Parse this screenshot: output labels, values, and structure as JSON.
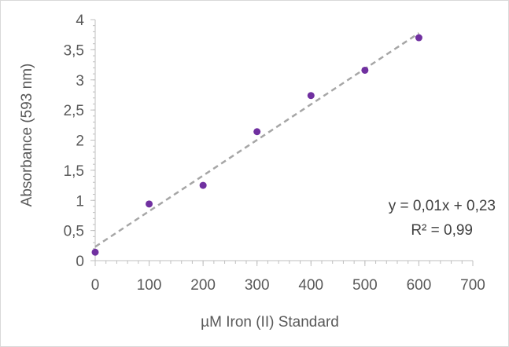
{
  "chart_data": {
    "type": "scatter",
    "title": "",
    "xlabel": "µM Iron (II) Standard",
    "ylabel": "Absorbance (593 nm)",
    "xlim": [
      0,
      700
    ],
    "ylim": [
      0,
      4
    ],
    "x_ticks": [
      0,
      100,
      200,
      300,
      400,
      500,
      600,
      700
    ],
    "y_ticks": [
      0,
      0.5,
      1,
      1.5,
      2,
      2.5,
      3,
      3.5,
      4
    ],
    "x_tick_labels": [
      "0",
      "100",
      "200",
      "300",
      "400",
      "500",
      "600",
      "700"
    ],
    "y_tick_labels": [
      "0",
      "0,5",
      "1",
      "1,5",
      "2",
      "2,5",
      "3",
      "3,5",
      "4"
    ],
    "grid": false,
    "legend": "none",
    "series": [
      {
        "x": [
          0,
          100,
          200,
          300,
          400,
          500,
          600
        ],
        "y": [
          0.14,
          0.94,
          1.25,
          2.14,
          2.74,
          3.16,
          3.7
        ],
        "color": "#7030a0"
      }
    ],
    "trendline": {
      "type": "linear",
      "slope": 0.00591,
      "intercept": 0.23,
      "x_range": [
        0,
        600
      ],
      "style": "dashed",
      "color": "#a6a6a6",
      "equation_label": "y = 0,01x + 0,23",
      "r2_label": "R² = 0,99"
    }
  }
}
